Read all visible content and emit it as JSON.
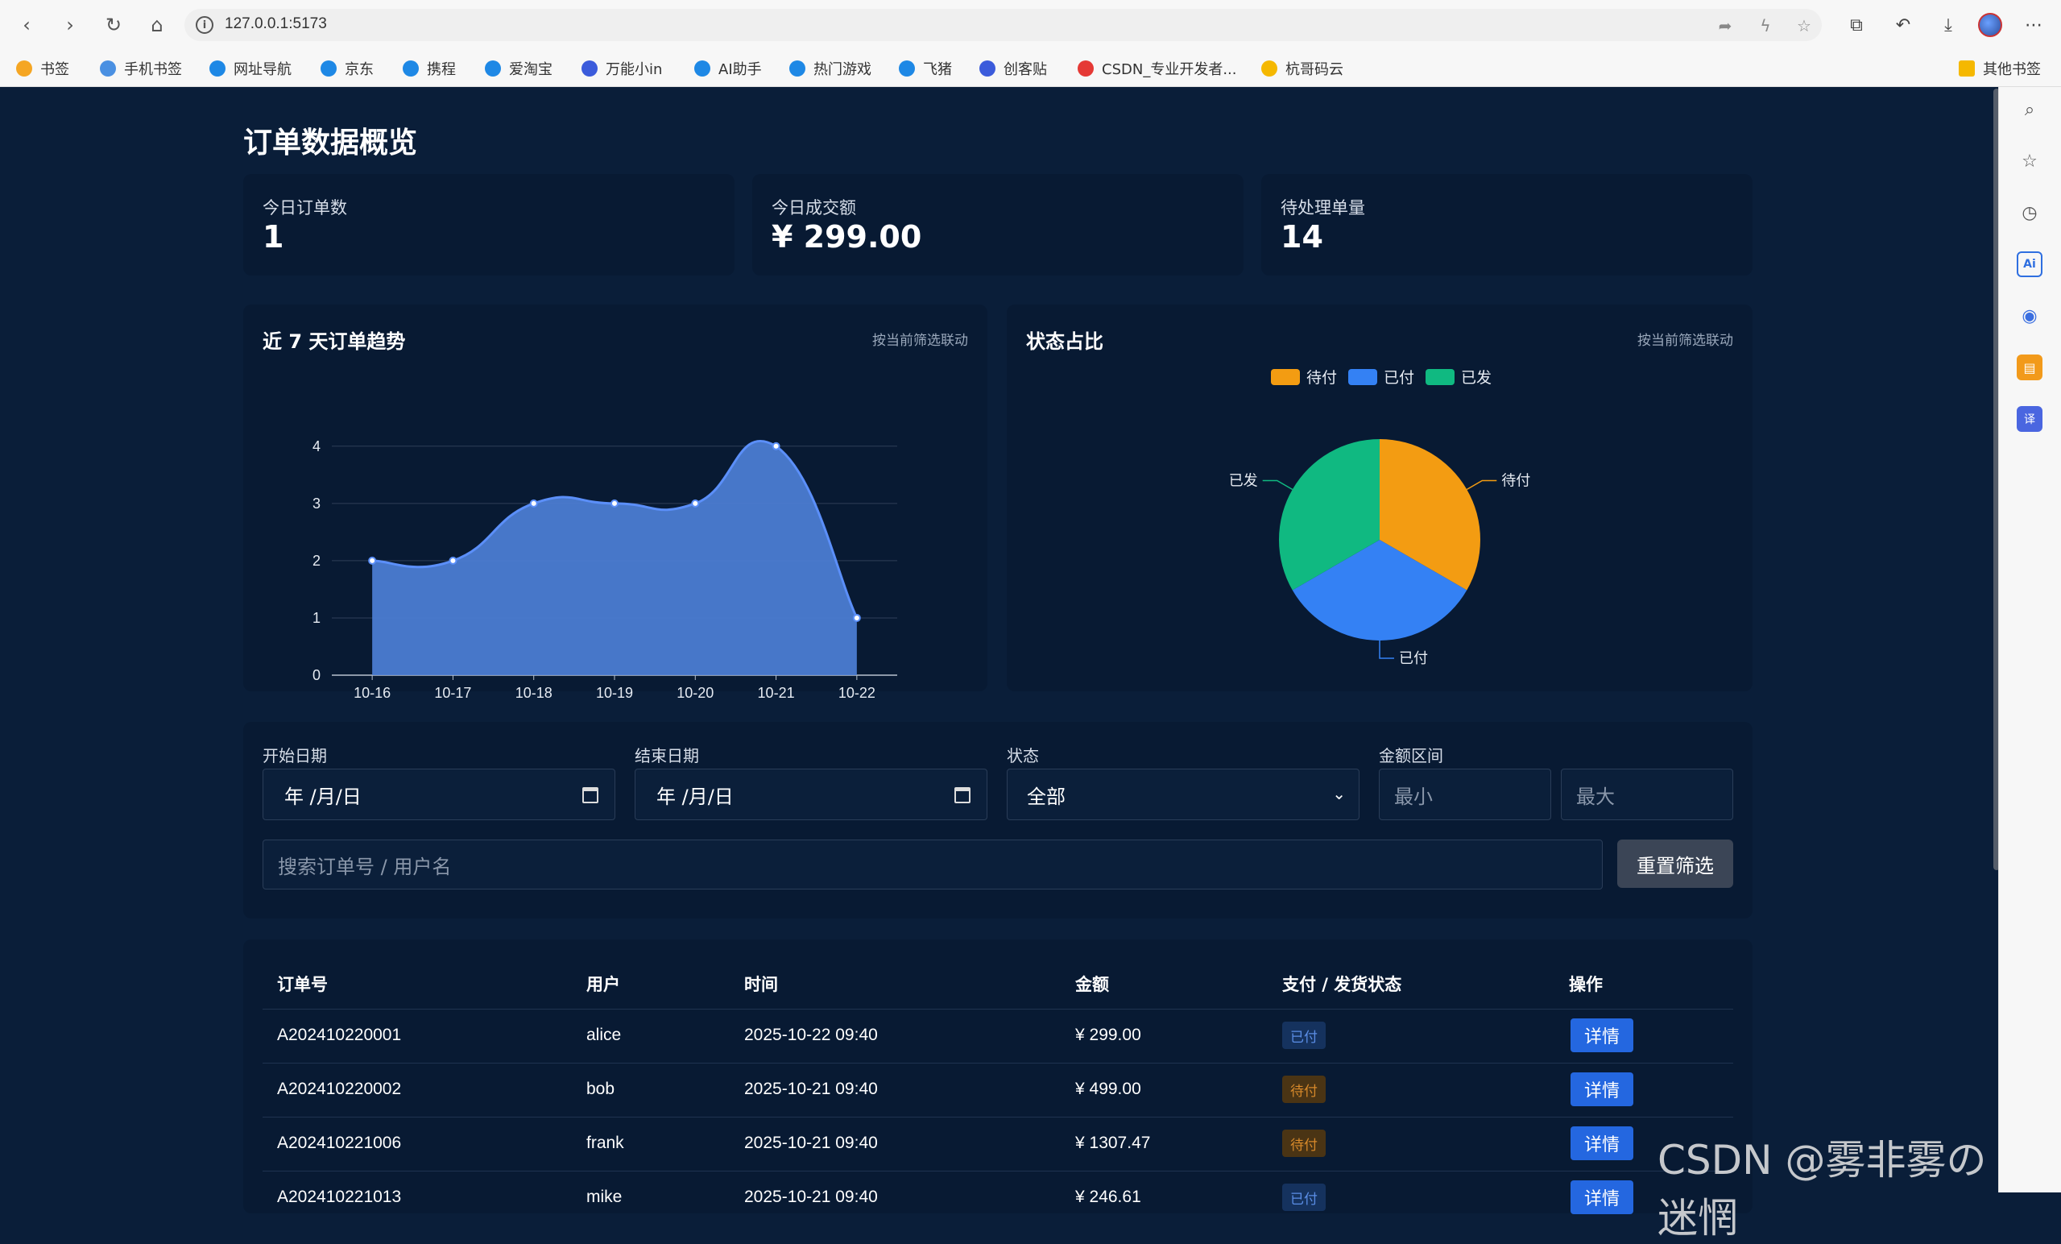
{
  "browser": {
    "url": "127.0.0.1:5173",
    "bookmarks": [
      {
        "label": "书签",
        "color": "#f5a623"
      },
      {
        "label": "手机书签",
        "color": "#4a90e2"
      },
      {
        "label": "网址导航",
        "color": "#1e88e5"
      },
      {
        "label": "京东",
        "color": "#1e88e5"
      },
      {
        "label": "携程",
        "color": "#1e88e5"
      },
      {
        "label": "爱淘宝",
        "color": "#1e88e5"
      },
      {
        "label": "万能小in",
        "color": "#3b5bdb"
      },
      {
        "label": "AI助手",
        "color": "#1e88e5"
      },
      {
        "label": "热门游戏",
        "color": "#1e88e5"
      },
      {
        "label": "飞猪",
        "color": "#1e88e5"
      },
      {
        "label": "创客贴",
        "color": "#3b5bdb"
      },
      {
        "label": "CSDN_专业开发者...",
        "color": "#e53935"
      },
      {
        "label": "杭哥码云",
        "color": "#f5b800"
      }
    ],
    "other_bookmarks": "其他书签"
  },
  "page": {
    "title": "订单数据概览",
    "stats": [
      {
        "label": "今日订单数",
        "value": "1"
      },
      {
        "label": "今日成交额",
        "value": "¥ 299.00"
      },
      {
        "label": "待处理单量",
        "value": "14"
      }
    ],
    "trend_panel": {
      "title": "近 7 天订单趋势",
      "hint": "按当前筛选联动"
    },
    "pie_panel": {
      "title": "状态占比",
      "hint": "按当前筛选联动"
    },
    "filters": {
      "start_label": "开始日期",
      "start_value": "年 /月/日",
      "end_label": "结束日期",
      "end_value": "年 /月/日",
      "status_label": "状态",
      "status_value": "全部",
      "amount_label": "金额区间",
      "min_placeholder": "最小",
      "max_placeholder": "最大",
      "search_placeholder": "搜索订单号 / 用户名",
      "reset_label": "重置筛选"
    },
    "table": {
      "headers": [
        "订单号",
        "用户",
        "时间",
        "金额",
        "支付 / 发货状态",
        "操作"
      ],
      "rows": [
        {
          "id": "A202410220001",
          "user": "alice",
          "time": "2025-10-22 09:40",
          "amount": "¥ 299.00",
          "status": "已付",
          "status_type": "paid",
          "action": "详情"
        },
        {
          "id": "A202410220002",
          "user": "bob",
          "time": "2025-10-21 09:40",
          "amount": "¥ 499.00",
          "status": "待付",
          "status_type": "pending",
          "action": "详情"
        },
        {
          "id": "A202410221006",
          "user": "frank",
          "time": "2025-10-21 09:40",
          "amount": "¥ 1307.47",
          "status": "待付",
          "status_type": "pending",
          "action": "详情"
        },
        {
          "id": "A202410221013",
          "user": "mike",
          "time": "2025-10-21 09:40",
          "amount": "¥ 246.61",
          "status": "已付",
          "status_type": "paid",
          "action": "详情"
        }
      ]
    }
  },
  "watermark": "CSDN @雾非雾の迷惘",
  "chart_data": [
    {
      "type": "area",
      "title": "近 7 天订单趋势",
      "categories": [
        "10-16",
        "10-17",
        "10-18",
        "10-19",
        "10-20",
        "10-21",
        "10-22"
      ],
      "values": [
        2,
        2,
        3,
        3,
        3,
        4,
        1
      ],
      "yticks": [
        0,
        1,
        2,
        3,
        4
      ],
      "ylim": [
        0,
        4
      ],
      "color": "#5b8ff9"
    },
    {
      "type": "pie",
      "title": "状态占比",
      "legend": [
        "待付",
        "已付",
        "已发"
      ],
      "legend_position": "top-center",
      "slices": [
        {
          "name": "待付",
          "value": 1,
          "color": "#f39c12"
        },
        {
          "name": "已付",
          "value": 1,
          "color": "#3481f4"
        },
        {
          "name": "已发",
          "value": 1,
          "color": "#10b981"
        }
      ]
    }
  ]
}
